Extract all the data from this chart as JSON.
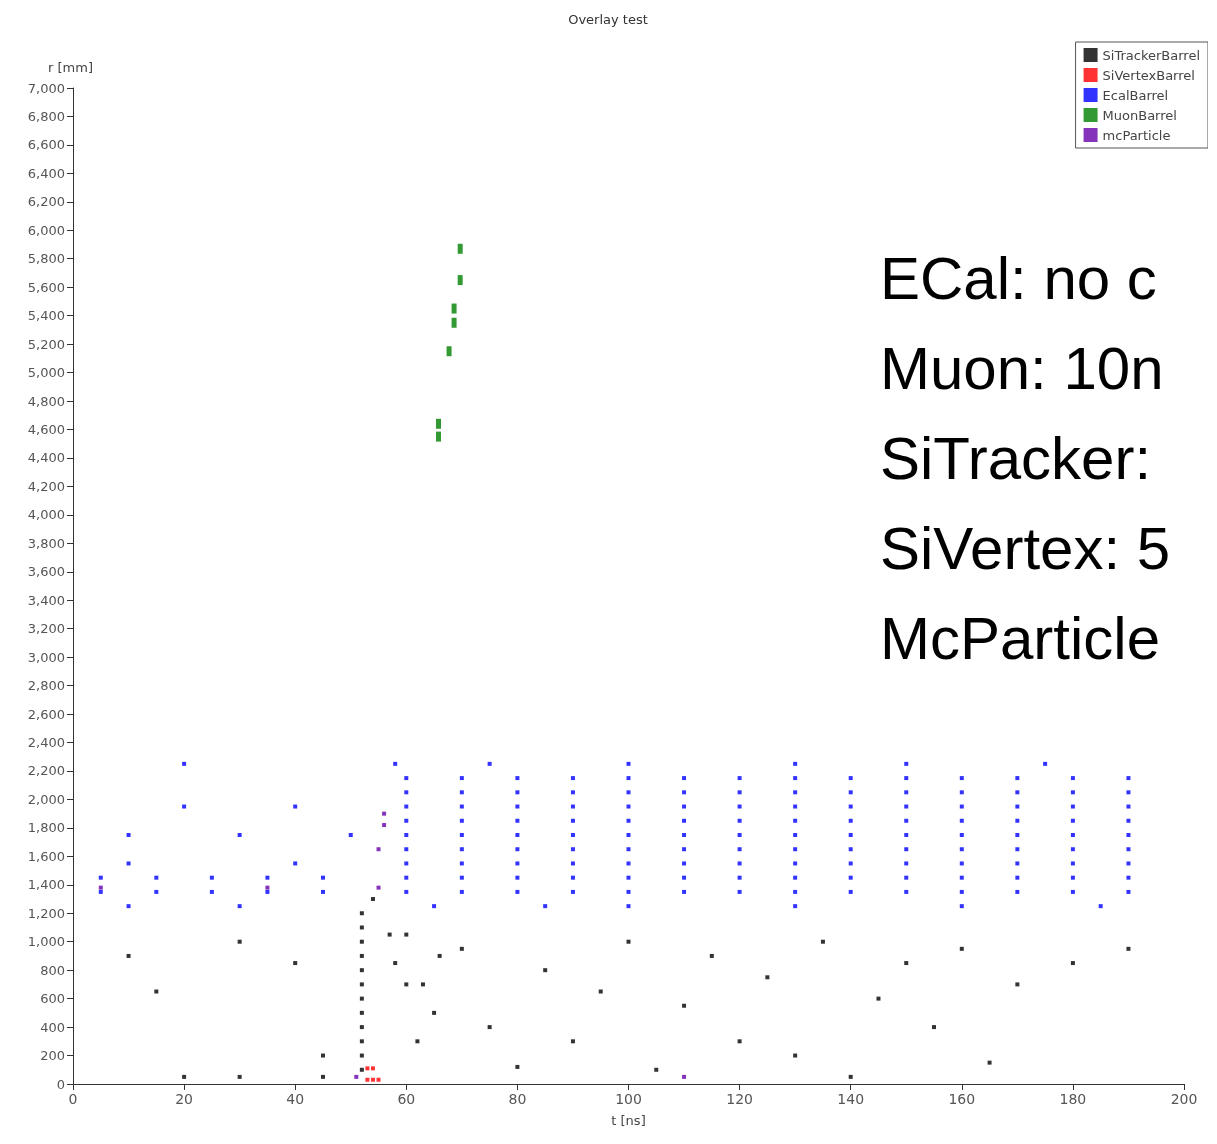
{
  "chart_data": {
    "type": "scatter",
    "title": "Overlay test",
    "xlabel": "t [ns]",
    "ylabel": "r [mm]",
    "xlim": [
      0,
      200
    ],
    "xticks": [
      0,
      20,
      40,
      60,
      80,
      100,
      120,
      140,
      160,
      180,
      200
    ],
    "ylim": [
      0,
      7000
    ],
    "yticks": [
      0,
      200,
      400,
      600,
      800,
      {
        "value": 1000,
        "label": "1,000"
      },
      {
        "value": 1200,
        "label": "1,200"
      },
      {
        "value": 1400,
        "label": "1,400"
      },
      {
        "value": 1600,
        "label": "1,600"
      },
      {
        "value": 1800,
        "label": "1,800"
      },
      {
        "value": 2000,
        "label": "2,000"
      },
      {
        "value": 2200,
        "label": "2,200"
      },
      {
        "value": 2400,
        "label": "2,400"
      },
      {
        "value": 2600,
        "label": "2,600"
      },
      {
        "value": 2800,
        "label": "2,800"
      },
      {
        "value": 3000,
        "label": "3,000"
      },
      {
        "value": 3200,
        "label": "3,200"
      },
      {
        "value": 3400,
        "label": "3,400"
      },
      {
        "value": 3600,
        "label": "3,600"
      },
      {
        "value": 3800,
        "label": "3,800"
      },
      {
        "value": 4000,
        "label": "4,000"
      },
      {
        "value": 4200,
        "label": "4,200"
      },
      {
        "value": 4400,
        "label": "4,400"
      },
      {
        "value": 4600,
        "label": "4,600"
      },
      {
        "value": 4800,
        "label": "4,800"
      },
      {
        "value": 5000,
        "label": "5,000"
      },
      {
        "value": 5200,
        "label": "5,200"
      },
      {
        "value": 5400,
        "label": "5,400"
      },
      {
        "value": 5600,
        "label": "5,600"
      },
      {
        "value": 5800,
        "label": "5,800"
      },
      {
        "value": 6000,
        "label": "6,000"
      },
      {
        "value": 6200,
        "label": "6,200"
      },
      {
        "value": 6400,
        "label": "6,400"
      },
      {
        "value": 6600,
        "label": "6,600"
      },
      {
        "value": 6800,
        "label": "6,800"
      },
      {
        "value": 7000,
        "label": "7,000"
      }
    ],
    "grid": false,
    "legend": "top right",
    "marker": "square",
    "annotations": [
      "ECal: no c",
      "Muon: 10n",
      "SiTracker:",
      "SiVertex: 5",
      "McParticle"
    ],
    "series": [
      {
        "name": "SiTrackerBarrel",
        "color": "#000000",
        "x": [
          52,
          52,
          52,
          52,
          52,
          52,
          52,
          52,
          52,
          52,
          52,
          52,
          54,
          10,
          15,
          30,
          40,
          45,
          20,
          30,
          45,
          60,
          65,
          70,
          75,
          80,
          85,
          90,
          95,
          100,
          105,
          110,
          115,
          120,
          125,
          130,
          135,
          140,
          145,
          150,
          155,
          160,
          165,
          170,
          180,
          190,
          57,
          58,
          60,
          62,
          63,
          66
        ],
        "values": [
          100,
          200,
          300,
          400,
          500,
          600,
          700,
          800,
          900,
          1000,
          1100,
          1200,
          1300,
          900,
          650,
          1000,
          850,
          200,
          50,
          50,
          50,
          700,
          500,
          950,
          400,
          120,
          800,
          300,
          650,
          1000,
          100,
          550,
          900,
          300,
          750,
          200,
          1000,
          50,
          600,
          850,
          400,
          950,
          150,
          700,
          850,
          950,
          1050,
          850,
          1050,
          300,
          700,
          900
        ]
      },
      {
        "name": "SiVertexBarrel",
        "color": "#ff0000",
        "x": [
          53,
          54,
          55,
          53,
          54
        ],
        "values": [
          30,
          30,
          30,
          110,
          110
        ]
      },
      {
        "name": "EcalBarrel",
        "color": "#0000ff",
        "x": [
          60,
          70,
          80,
          90,
          100,
          110,
          120,
          130,
          140,
          150,
          160,
          170,
          180,
          190,
          60,
          70,
          80,
          90,
          100,
          110,
          120,
          130,
          140,
          150,
          160,
          170,
          180,
          190,
          60,
          70,
          80,
          90,
          100,
          110,
          120,
          130,
          140,
          150,
          160,
          170,
          180,
          190,
          60,
          70,
          80,
          90,
          100,
          110,
          120,
          130,
          140,
          150,
          160,
          170,
          180,
          190,
          60,
          70,
          80,
          90,
          100,
          110,
          120,
          130,
          140,
          150,
          160,
          170,
          180,
          190,
          60,
          70,
          80,
          90,
          100,
          110,
          120,
          130,
          140,
          150,
          160,
          170,
          180,
          190,
          60,
          70,
          80,
          90,
          100,
          110,
          120,
          130,
          140,
          150,
          160,
          170,
          180,
          190,
          60,
          70,
          80,
          90,
          100,
          110,
          120,
          130,
          140,
          150,
          160,
          170,
          180,
          190,
          60,
          70,
          80,
          90,
          100,
          110,
          120,
          130,
          140,
          150,
          160,
          170,
          180,
          190,
          5,
          15,
          25,
          35,
          45,
          5,
          15,
          25,
          35,
          45,
          20,
          40,
          10,
          30,
          50,
          10,
          40,
          20,
          58,
          75,
          100,
          130,
          150,
          175,
          10,
          30,
          65,
          85,
          100,
          130,
          160,
          185
        ],
        "values": [
          2150,
          2150,
          2150,
          2150,
          2150,
          2150,
          2150,
          2150,
          2150,
          2150,
          2150,
          2150,
          2150,
          2150,
          2050,
          2050,
          2050,
          2050,
          2050,
          2050,
          2050,
          2050,
          2050,
          2050,
          2050,
          2050,
          2050,
          2050,
          1950,
          1950,
          1950,
          1950,
          1950,
          1950,
          1950,
          1950,
          1950,
          1950,
          1950,
          1950,
          1950,
          1950,
          1850,
          1850,
          1850,
          1850,
          1850,
          1850,
          1850,
          1850,
          1850,
          1850,
          1850,
          1850,
          1850,
          1850,
          1750,
          1750,
          1750,
          1750,
          1750,
          1750,
          1750,
          1750,
          1750,
          1750,
          1750,
          1750,
          1750,
          1750,
          1650,
          1650,
          1650,
          1650,
          1650,
          1650,
          1650,
          1650,
          1650,
          1650,
          1650,
          1650,
          1650,
          1650,
          1550,
          1550,
          1550,
          1550,
          1550,
          1550,
          1550,
          1550,
          1550,
          1550,
          1550,
          1550,
          1550,
          1550,
          1450,
          1450,
          1450,
          1450,
          1450,
          1450,
          1450,
          1450,
          1450,
          1450,
          1450,
          1450,
          1450,
          1450,
          1350,
          1350,
          1350,
          1350,
          1350,
          1350,
          1350,
          1350,
          1350,
          1350,
          1350,
          1350,
          1350,
          1350,
          1450,
          1450,
          1450,
          1450,
          1450,
          1350,
          1350,
          1350,
          1350,
          1350,
          1950,
          1950,
          1750,
          1750,
          1750,
          1550,
          1550,
          2250,
          2250,
          2250,
          2250,
          2250,
          2250,
          2250,
          1250,
          1250,
          1250,
          1250,
          1250,
          1250,
          1250,
          1250
        ]
      },
      {
        "name": "MuonBarrel",
        "color": "#008000",
        "x": [
          69.7,
          69.7,
          68.6,
          68.6,
          67.7,
          65.8,
          65.8
        ],
        "values": [
          5870,
          5650,
          5450,
          5350,
          5150,
          4640,
          4550
        ]
      },
      {
        "name": "mcParticle",
        "color": "#6600aa",
        "x": [
          51,
          110,
          56,
          56,
          55,
          55,
          35,
          5
        ],
        "values": [
          50,
          50,
          1900,
          1820,
          1650,
          1380,
          1380,
          1380
        ]
      }
    ]
  }
}
